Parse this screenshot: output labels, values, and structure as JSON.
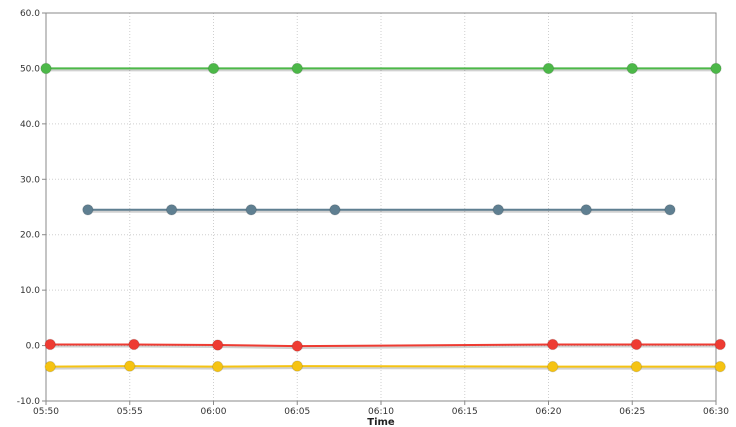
{
  "chart_data": {
    "type": "line",
    "xlabel": "Time",
    "ylabel": "",
    "title": "",
    "ylim": [
      -10,
      60
    ],
    "xlim": [
      "05:50",
      "06:30"
    ],
    "y_ticks": [
      "60.0",
      "50.0",
      "40.0",
      "30.0",
      "20.0",
      "10.0",
      "0.0",
      "-10.0"
    ],
    "x_ticks": [
      "05:50",
      "05:55",
      "06:00",
      "06:05",
      "06:10",
      "06:15",
      "06:20",
      "06:25",
      "06:30"
    ],
    "grid": true,
    "legend": "none",
    "series": [
      {
        "color": "#4cb848",
        "points": [
          {
            "x": "05:50",
            "y": 50
          },
          {
            "x": "06:00",
            "y": 50
          },
          {
            "x": "06:05",
            "y": 50
          },
          {
            "x": "06:20",
            "y": 50
          },
          {
            "x": "06:25",
            "y": 50
          },
          {
            "x": "06:30",
            "y": 50
          }
        ]
      },
      {
        "color": "#5f7f91",
        "points": [
          {
            "x": "05:52:30",
            "y": 24.5
          },
          {
            "x": "05:57:30",
            "y": 24.5
          },
          {
            "x": "06:02:15",
            "y": 24.5
          },
          {
            "x": "06:07:15",
            "y": 24.5
          },
          {
            "x": "06:17:00",
            "y": 24.5
          },
          {
            "x": "06:22:15",
            "y": 24.5
          },
          {
            "x": "06:27:15",
            "y": 24.5
          }
        ]
      },
      {
        "color": "#ee3b32",
        "points": [
          {
            "x": "05:50:15",
            "y": 0.2
          },
          {
            "x": "05:55:15",
            "y": 0.2
          },
          {
            "x": "06:00:15",
            "y": 0.1
          },
          {
            "x": "06:05:00",
            "y": -0.1
          },
          {
            "x": "06:20:15",
            "y": 0.2
          },
          {
            "x": "06:25:15",
            "y": 0.2
          },
          {
            "x": "06:30:15",
            "y": 0.2
          }
        ]
      },
      {
        "color": "#f5c312",
        "points": [
          {
            "x": "05:50:15",
            "y": -3.8
          },
          {
            "x": "05:55:00",
            "y": -3.7
          },
          {
            "x": "06:00:15",
            "y": -3.8
          },
          {
            "x": "06:05:00",
            "y": -3.7
          },
          {
            "x": "06:20:15",
            "y": -3.8
          },
          {
            "x": "06:25:15",
            "y": -3.8
          },
          {
            "x": "06:30:15",
            "y": -3.8
          }
        ]
      }
    ]
  }
}
